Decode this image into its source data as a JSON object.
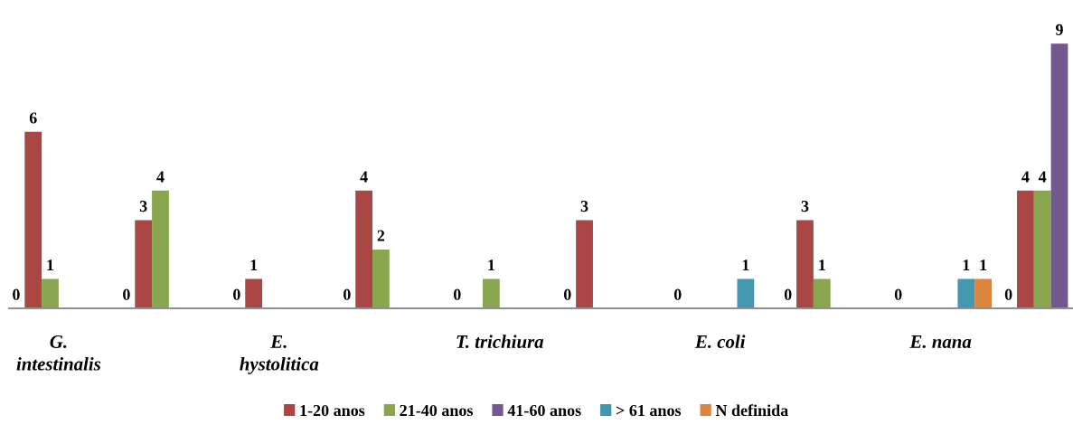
{
  "chart_data": {
    "type": "bar",
    "categories": [
      "G. intestinalis",
      null,
      "E. hystolitica",
      null,
      "T. trichiura",
      null,
      "E. coli",
      null,
      "E. nana",
      null
    ],
    "series": [
      {
        "color": "#ffffff",
        "values": [
          0,
          0,
          0,
          0,
          0,
          0,
          0,
          0,
          0,
          0
        ]
      },
      {
        "name": "1-20 anos",
        "color": "#aa4643",
        "values": [
          6,
          3,
          1,
          4,
          null,
          3,
          null,
          3,
          null,
          4
        ]
      },
      {
        "name": "21-40 anos",
        "color": "#89a54e",
        "values": [
          1,
          4,
          null,
          2,
          1,
          null,
          null,
          1,
          null,
          4
        ]
      },
      {
        "name": "41-60 anos",
        "color": "#71588f",
        "values": [
          null,
          null,
          null,
          null,
          null,
          null,
          null,
          null,
          null,
          9
        ]
      },
      {
        "name": "> 61 anos",
        "color": "#4198af",
        "values": [
          null,
          null,
          null,
          null,
          null,
          null,
          1,
          null,
          1,
          null
        ]
      },
      {
        "name": "N definida",
        "color": "#db843d",
        "values": [
          null,
          null,
          null,
          null,
          null,
          null,
          null,
          null,
          1,
          null
        ]
      }
    ],
    "data_labels": true,
    "legend": "bottom"
  }
}
